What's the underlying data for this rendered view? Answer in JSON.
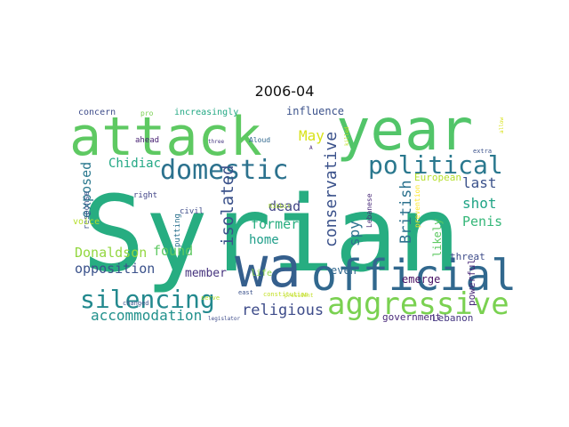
{
  "title": "2006-04",
  "words": [
    {
      "text": "Syrian",
      "color": "#27ad81"
    },
    {
      "text": "attack",
      "color": "#5ec962"
    },
    {
      "text": "year",
      "color": "#52c569"
    },
    {
      "text": "wa",
      "color": "#355f8d"
    },
    {
      "text": "official",
      "color": "#31688e"
    },
    {
      "text": "domestic",
      "color": "#2c728e"
    },
    {
      "text": "political",
      "color": "#2a788e"
    },
    {
      "text": "silencing",
      "color": "#23898e"
    },
    {
      "text": "aggressive",
      "color": "#7ad151"
    },
    {
      "text": "conservative",
      "color": "#3b528b"
    },
    {
      "text": "accommodation",
      "color": "#21918c"
    },
    {
      "text": "religious",
      "color": "#3e4c8a"
    },
    {
      "text": "isolated",
      "color": "#3b528b"
    },
    {
      "text": "British",
      "color": "#2c728e"
    },
    {
      "text": "Penis",
      "color": "#35b779"
    },
    {
      "text": "shot",
      "color": "#20a486"
    },
    {
      "text": "last",
      "color": "#3b528b"
    },
    {
      "text": "Donaldson",
      "color": "#93d741"
    },
    {
      "text": "opposition",
      "color": "#3b528b"
    },
    {
      "text": "exposed",
      "color": "#2a788e"
    },
    {
      "text": "found",
      "color": "#5ec962"
    },
    {
      "text": "former",
      "color": "#28ae80"
    },
    {
      "text": "member",
      "color": "#46337e"
    },
    {
      "text": "home",
      "color": "#1f9e89"
    },
    {
      "text": "dead",
      "color": "#414487"
    },
    {
      "text": "spy",
      "color": "#2c728e"
    },
    {
      "text": "May",
      "color": "#d8e219"
    },
    {
      "text": "Chidiac",
      "color": "#22a884"
    },
    {
      "text": "influence",
      "color": "#3b528b"
    },
    {
      "text": "likely",
      "color": "#5ec962"
    },
    {
      "text": "even",
      "color": "#31688e"
    },
    {
      "text": "emerge",
      "color": "#471063"
    },
    {
      "text": "threat",
      "color": "#3e4c8a"
    },
    {
      "text": "powerful",
      "color": "#482878"
    },
    {
      "text": "government",
      "color": "#482878"
    },
    {
      "text": "Lebanon",
      "color": "#453781"
    },
    {
      "text": "European",
      "color": "#b5de2b"
    },
    {
      "text": "increasingly",
      "color": "#22a884"
    },
    {
      "text": "concern",
      "color": "#3e4c8a"
    },
    {
      "text": "pro",
      "color": "#7ad151"
    },
    {
      "text": "ahead",
      "color": "#482173"
    },
    {
      "text": "right",
      "color": "#414487"
    },
    {
      "text": "response",
      "color": "#3b528b"
    },
    {
      "text": "voice",
      "color": "#b5de2b"
    },
    {
      "text": "civil",
      "color": "#3e4c8a"
    },
    {
      "text": "putting",
      "color": "#2c728e"
    },
    {
      "text": "Lebanese",
      "color": "#482878"
    },
    {
      "text": "prevention",
      "color": "#fde725"
    },
    {
      "text": "life",
      "color": "#8fd744"
    },
    {
      "text": "Aloud",
      "color": "#31688e"
    },
    {
      "text": "Ribbit",
      "color": "#a8db34"
    },
    {
      "text": "extra",
      "color": "#3b528b"
    },
    {
      "text": "allow",
      "color": "#d8e219"
    },
    {
      "text": "killed",
      "color": "#c2df23"
    },
    {
      "text": "changed",
      "color": "#3b528b"
    },
    {
      "text": "three",
      "color": "#453781"
    },
    {
      "text": "serve",
      "color": "#b5de2b"
    },
    {
      "text": "legislator",
      "color": "#3e4c8a"
    },
    {
      "text": "president",
      "color": "#c2df23"
    },
    {
      "text": "constitution",
      "color": "#c2df23"
    },
    {
      "text": "east",
      "color": "#3b528b"
    },
    {
      "text": "A",
      "color": "#482878"
    }
  ]
}
